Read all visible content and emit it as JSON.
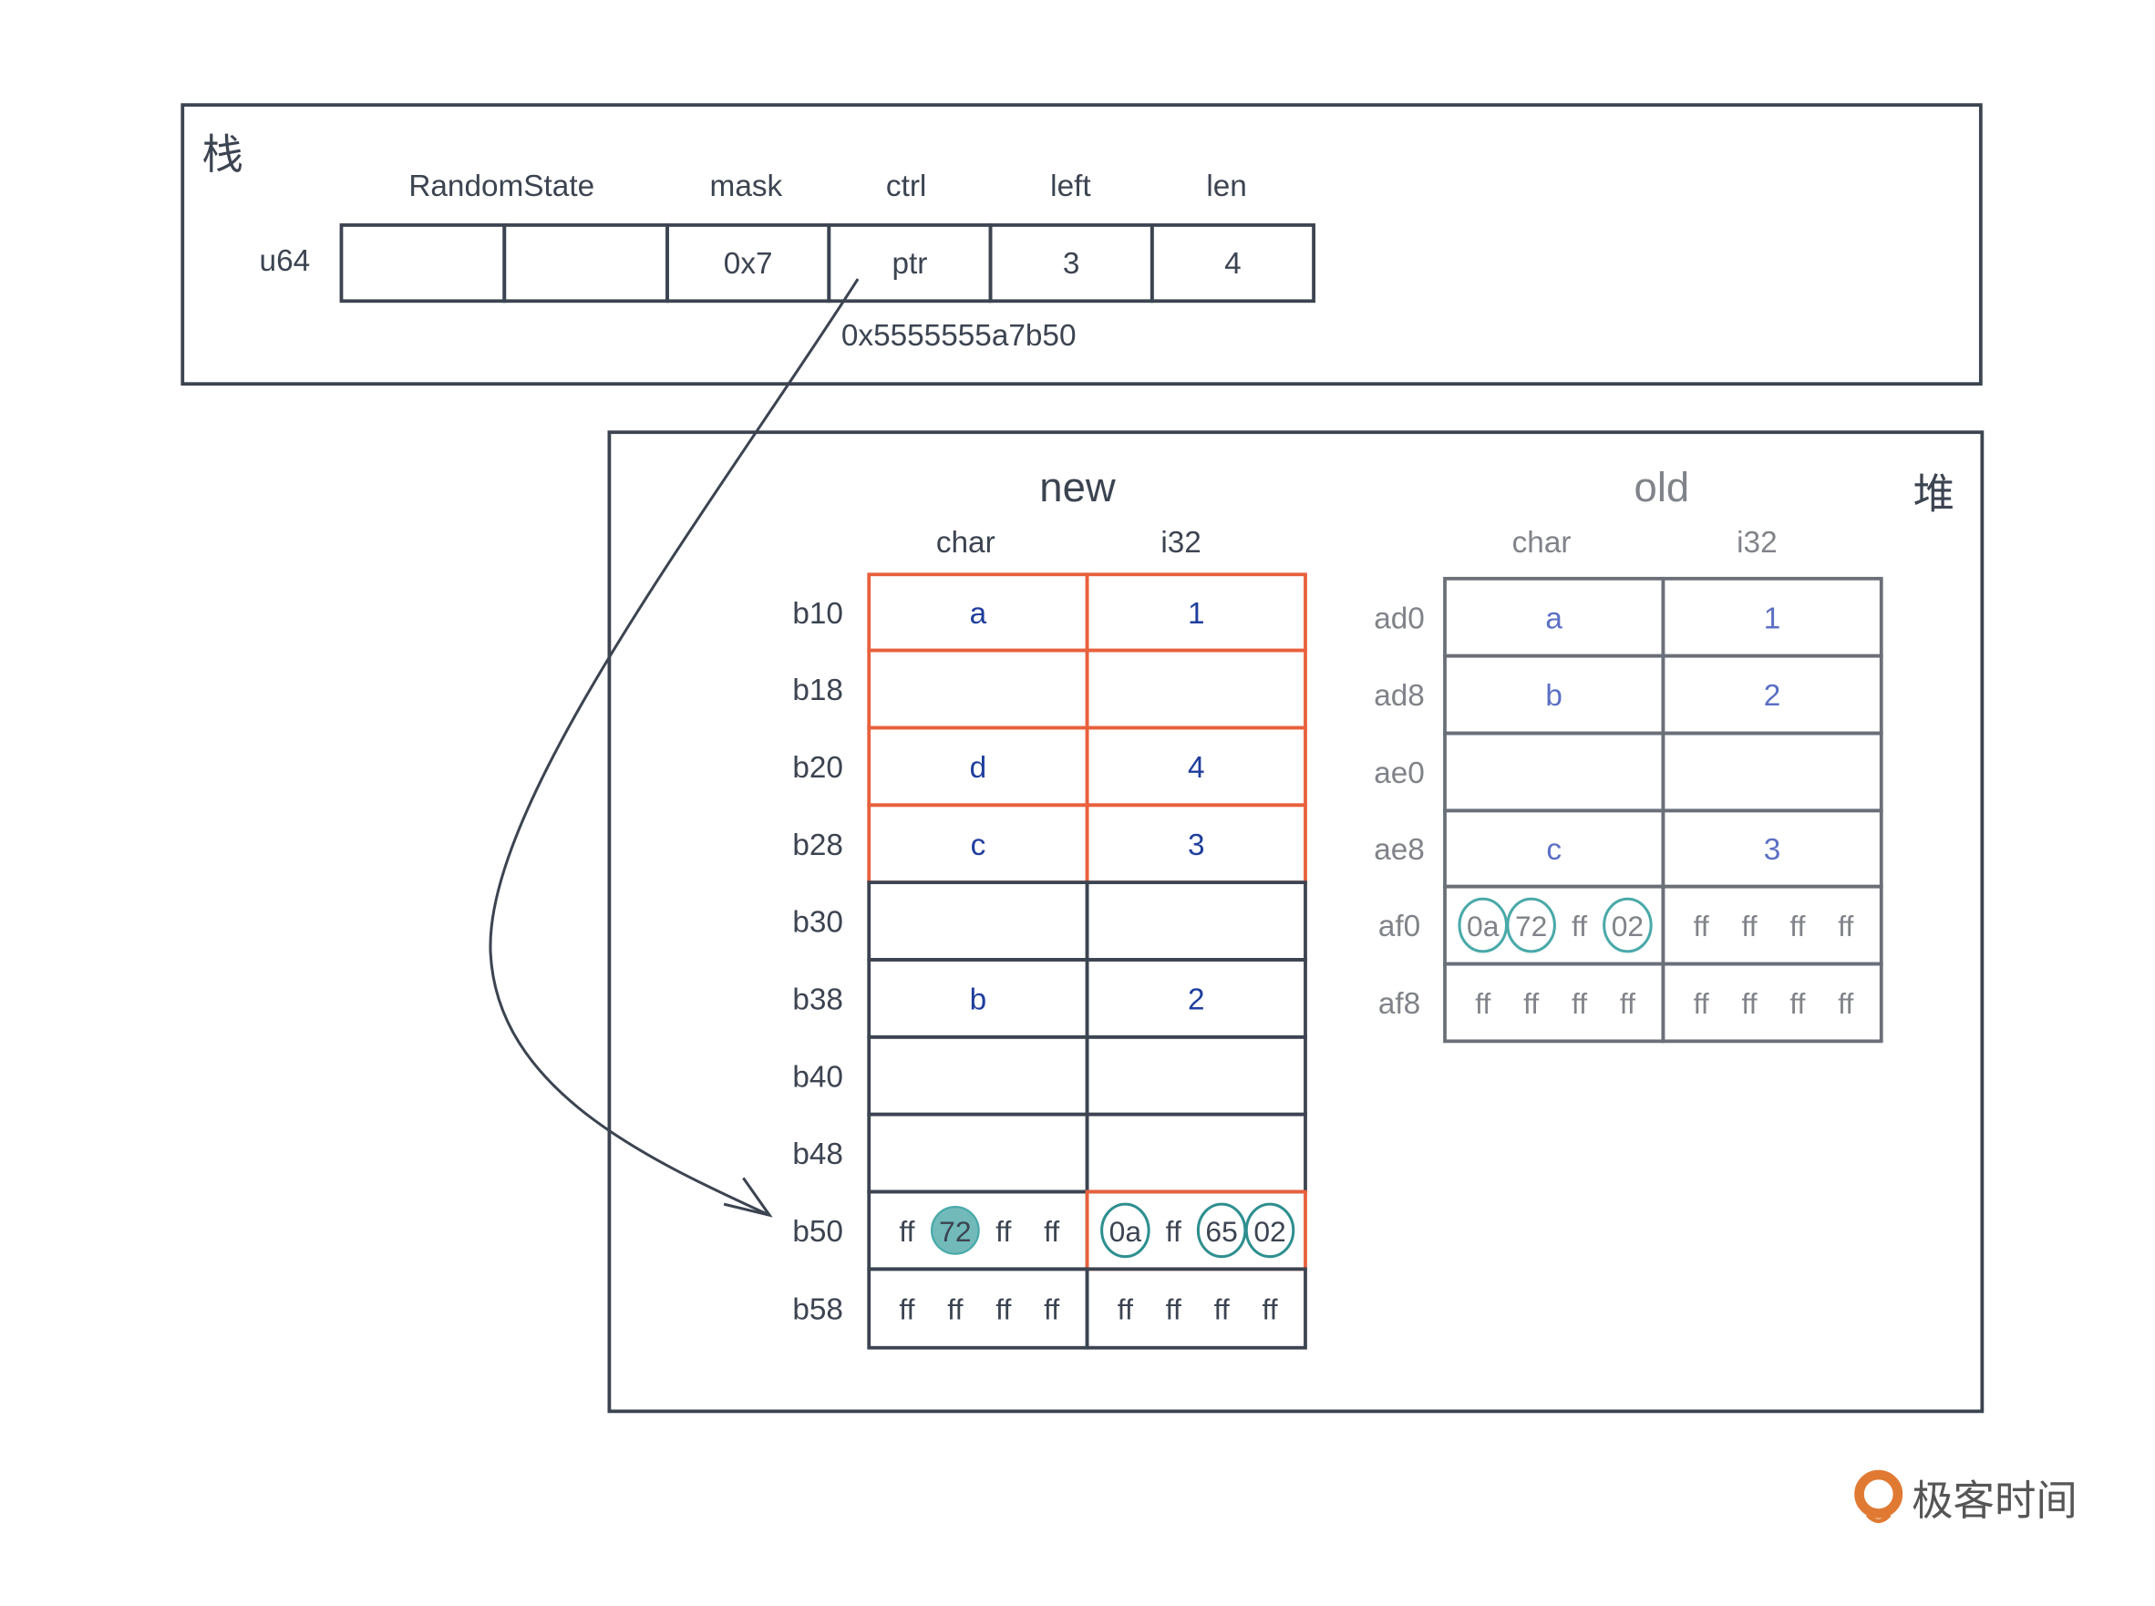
{
  "stack": {
    "title": "栈",
    "row_label": "u64",
    "headers": [
      "RandomState",
      "mask",
      "ctrl",
      "left",
      "len"
    ],
    "cells": [
      "",
      "",
      "0x7",
      "ptr",
      "3",
      "4"
    ],
    "pointer_address": "0x5555555a7b50"
  },
  "heap": {
    "title": "堆",
    "new": {
      "title": "new",
      "headers": [
        "char",
        "i32"
      ],
      "rows": [
        {
          "addr": "b10",
          "char": [
            "a"
          ],
          "i32": [
            "1"
          ],
          "highlight": true
        },
        {
          "addr": "b18",
          "char": [
            ""
          ],
          "i32": [
            ""
          ],
          "highlight": true
        },
        {
          "addr": "b20",
          "char": [
            "d"
          ],
          "i32": [
            "4"
          ],
          "highlight": true
        },
        {
          "addr": "b28",
          "char": [
            "c"
          ],
          "i32": [
            "3"
          ],
          "highlight": true
        },
        {
          "addr": "b30",
          "char": [
            ""
          ],
          "i32": [
            ""
          ]
        },
        {
          "addr": "b38",
          "char": [
            "b"
          ],
          "i32": [
            "2"
          ]
        },
        {
          "addr": "b40",
          "char": [
            ""
          ],
          "i32": [
            ""
          ]
        },
        {
          "addr": "b48",
          "char": [
            ""
          ],
          "i32": [
            ""
          ]
        },
        {
          "addr": "b50",
          "char": [
            "ff",
            "72",
            "ff",
            "ff"
          ],
          "char_marks": [
            "",
            "filled",
            "",
            ""
          ],
          "i32": [
            "0a",
            "ff",
            "65",
            "02"
          ],
          "i32_marks": [
            "circle",
            "",
            "circle",
            "circle"
          ],
          "i32_highlight": true
        },
        {
          "addr": "b58",
          "char": [
            "ff",
            "ff",
            "ff",
            "ff"
          ],
          "i32": [
            "ff",
            "ff",
            "ff",
            "ff"
          ]
        }
      ]
    },
    "old": {
      "title": "old",
      "headers": [
        "char",
        "i32"
      ],
      "rows": [
        {
          "addr": "ad0",
          "char": [
            "a"
          ],
          "i32": [
            "1"
          ]
        },
        {
          "addr": "ad8",
          "char": [
            "b"
          ],
          "i32": [
            "2"
          ]
        },
        {
          "addr": "ae0",
          "char": [
            ""
          ],
          "i32": [
            ""
          ]
        },
        {
          "addr": "ae8",
          "char": [
            "c"
          ],
          "i32": [
            "3"
          ]
        },
        {
          "addr": "af0",
          "char": [
            "0a",
            "72",
            "ff",
            "02"
          ],
          "char_marks": [
            "circle",
            "circle",
            "",
            "circle"
          ],
          "i32": [
            "ff",
            "ff",
            "ff",
            "ff"
          ]
        },
        {
          "addr": "af8",
          "char": [
            "ff",
            "ff",
            "ff",
            "ff"
          ],
          "i32": [
            "ff",
            "ff",
            "ff",
            "ff"
          ]
        }
      ]
    }
  },
  "logo": {
    "text": "极客时间"
  },
  "colors": {
    "line": "#3c4451",
    "highlight": "#e8603c",
    "value_new": "#1f3e9c",
    "value_old": "#5b6fc4",
    "old_grey": "#808389",
    "teal": "#2e8f8f",
    "teal_light": "#4aa9a9",
    "teal_fill": "#72baba",
    "logo_orange": "#e07a33"
  }
}
